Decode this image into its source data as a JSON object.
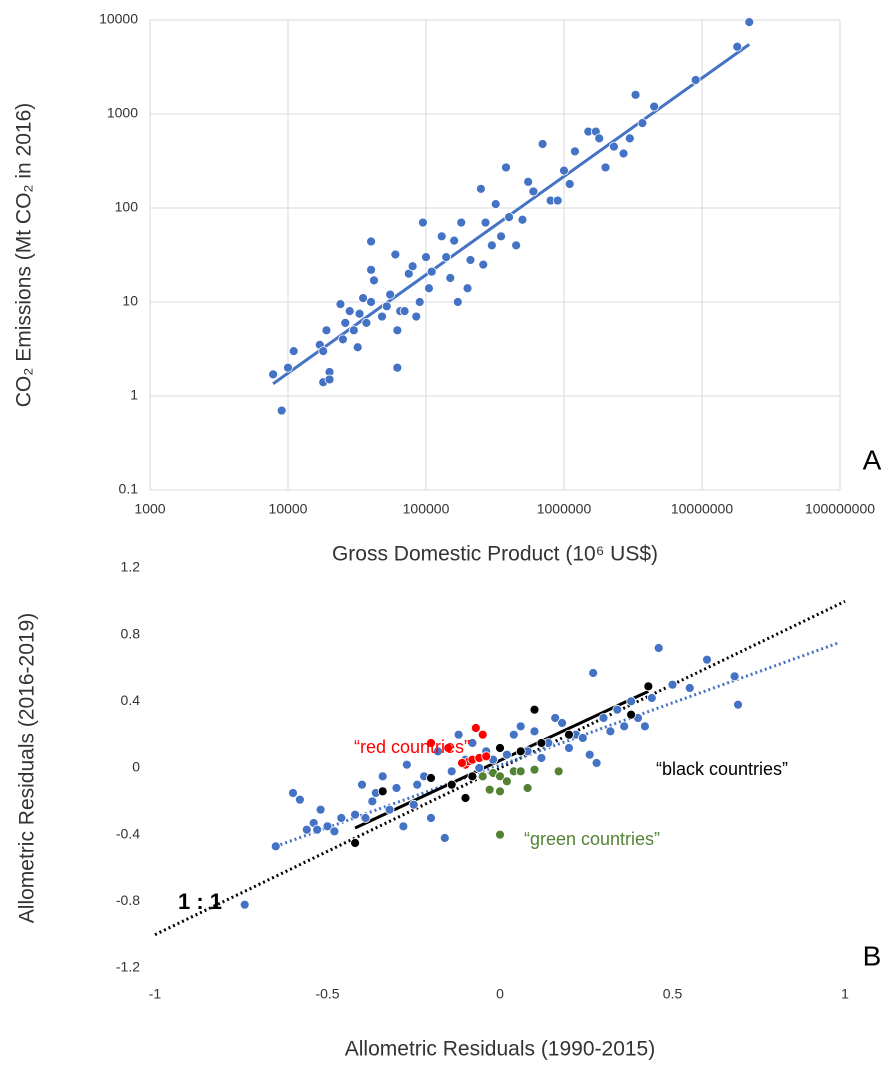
{
  "chart_data": [
    {
      "type": "scatter",
      "x_label": "Gross Domestic Product (10⁶ US$)",
      "y_label": "CO₂ Emissions (Mt CO₂ in 2016)",
      "panel_label": "A",
      "log_x": true,
      "log_y": true,
      "grid": true,
      "xlim": [
        1000,
        100000000
      ],
      "xticks": [
        1000,
        10000,
        100000,
        1000000,
        10000000,
        100000000
      ],
      "ylim": [
        0.1,
        10000
      ],
      "yticks": [
        0.1,
        1,
        10,
        100,
        1000,
        10000
      ],
      "color": "#4472c4",
      "x": [
        7800,
        9000,
        10000,
        11000,
        17000,
        18000,
        18000,
        20000,
        20000,
        19000,
        24000,
        25000,
        26000,
        28000,
        30000,
        32000,
        33000,
        35000,
        37000,
        40000,
        40000,
        40000,
        42000,
        48000,
        52000,
        55000,
        60000,
        62000,
        62000,
        65000,
        70000,
        75000,
        80000,
        85000,
        90000,
        95000,
        100000,
        105000,
        110000,
        130000,
        140000,
        150000,
        160000,
        170000,
        180000,
        200000,
        210000,
        250000,
        260000,
        270000,
        300000,
        320000,
        350000,
        380000,
        400000,
        450000,
        500000,
        550000,
        600000,
        700000,
        800000,
        900000,
        1000000,
        1100000,
        1200000,
        1500000,
        1700000,
        1800000,
        2000000,
        2300000,
        2700000,
        3000000,
        3300000,
        3700000,
        4500000,
        9000000,
        18000000,
        22000000
      ],
      "values": [
        1.7,
        0.7,
        2,
        3,
        3.5,
        1.4,
        3,
        1.8,
        1.5,
        5,
        9.5,
        4,
        6,
        8,
        5,
        3.3,
        7.5,
        11,
        6,
        10,
        44,
        22,
        17,
        7,
        9,
        12,
        32,
        2,
        5,
        8,
        8,
        20,
        24,
        7,
        10,
        70,
        30,
        14,
        21,
        50,
        30,
        18,
        45,
        10,
        70,
        14,
        28,
        160,
        25,
        70,
        40,
        110,
        50,
        270,
        80,
        40,
        75,
        190,
        150,
        480,
        120,
        120,
        250,
        180,
        400,
        650,
        650,
        550,
        270,
        450,
        380,
        550,
        1600,
        800,
        1200,
        2300,
        5200,
        9500
      ],
      "lines": [
        {
          "color": "#4472c4",
          "style": "solid",
          "x": [
            7800,
            22000000
          ],
          "values": [
            1.35,
            5500
          ]
        }
      ]
    },
    {
      "type": "scatter",
      "x_label": "Allometric Residuals (1990-2015)",
      "y_label": "Allometric Residuals (2016-2019)",
      "panel_label": "B",
      "log_x": false,
      "log_y": false,
      "grid": false,
      "xlim": [
        -1,
        1
      ],
      "xticks": [
        -1,
        -0.5,
        0,
        0.5,
        1
      ],
      "ylim": [
        -1.2,
        1.2
      ],
      "yticks": [
        -1.2,
        -0.8,
        -0.4,
        0,
        0.4,
        0.8,
        1.2
      ],
      "series": [
        {
          "color": "#4472c4",
          "x": [
            -0.74,
            -0.65,
            -0.6,
            -0.58,
            -0.56,
            -0.54,
            -0.53,
            -0.52,
            -0.5,
            -0.48,
            -0.46,
            -0.42,
            -0.4,
            -0.39,
            -0.37,
            -0.36,
            -0.34,
            -0.32,
            -0.3,
            -0.28,
            -0.27,
            -0.25,
            -0.24,
            -0.22,
            -0.2,
            -0.18,
            -0.16,
            -0.14,
            -0.12,
            -0.1,
            -0.08,
            -0.06,
            -0.04,
            -0.02,
            0,
            0.02,
            0.04,
            0.06,
            0.08,
            0.1,
            0.12,
            0.14,
            0.16,
            0.18,
            0.2,
            0.22,
            0.24,
            0.26,
            0.27,
            0.28,
            0.3,
            0.32,
            0.34,
            0.36,
            0.38,
            0.4,
            0.42,
            0.44,
            0.46,
            0.5,
            0.55,
            0.6,
            0.68,
            0.69
          ],
          "values": [
            -0.82,
            -0.47,
            -0.15,
            -0.19,
            -0.37,
            -0.33,
            -0.37,
            -0.25,
            -0.35,
            -0.38,
            -0.3,
            -0.28,
            -0.1,
            -0.3,
            -0.2,
            -0.15,
            -0.05,
            -0.25,
            -0.12,
            -0.35,
            0.02,
            -0.22,
            -0.1,
            -0.05,
            -0.3,
            0.1,
            -0.42,
            -0.02,
            0.2,
            0.05,
            0.15,
            0,
            0.1,
            0.05,
            0.12,
            0.08,
            0.2,
            0.25,
            0.1,
            0.22,
            0.06,
            0.15,
            0.3,
            0.27,
            0.12,
            0.2,
            0.18,
            0.08,
            0.57,
            0.03,
            0.3,
            0.22,
            0.35,
            0.25,
            0.4,
            0.3,
            0.25,
            0.42,
            0.72,
            0.5,
            0.48,
            0.65,
            0.55,
            0.38
          ]
        },
        {
          "name": "“red countries”",
          "color": "#ff0000",
          "x": [
            -0.2,
            -0.15,
            -0.07,
            -0.05,
            -0.1,
            -0.09,
            -0.08,
            -0.06,
            -0.04,
            -0.11
          ],
          "values": [
            0.15,
            0.12,
            0.24,
            0.2,
            0.02,
            0.04,
            0.05,
            0.06,
            0.07,
            0.03
          ]
        },
        {
          "name": "“black countries”",
          "color": "#000000",
          "x": [
            -0.42,
            -0.34,
            -0.2,
            -0.14,
            -0.1,
            -0.08,
            0,
            0.1,
            0.12,
            0.2,
            0.38,
            0.43,
            0.06,
            -0.05
          ],
          "values": [
            -0.45,
            -0.14,
            -0.06,
            -0.1,
            -0.18,
            -0.05,
            0.12,
            0.35,
            0.15,
            0.2,
            0.32,
            0.49,
            0.1,
            -0.05
          ]
        },
        {
          "name": "“green countries”",
          "color": "#548235",
          "x": [
            0,
            -0.03,
            -0.05,
            -0.02,
            0,
            0.02,
            0.04,
            0.06,
            0.1,
            0.17,
            0.08,
            0
          ],
          "values": [
            -0.4,
            -0.13,
            -0.05,
            -0.03,
            -0.05,
            -0.08,
            -0.02,
            -0.02,
            -0.01,
            -0.02,
            -0.12,
            -0.14
          ]
        }
      ],
      "lines": [
        {
          "label": "1 : 1",
          "color": "#000000",
          "style": "dotted",
          "x": [
            -1,
            1
          ],
          "values": [
            -1,
            1
          ]
        },
        {
          "color": "#4472c4",
          "style": "dotted",
          "x": [
            -0.65,
            0.98
          ],
          "values": [
            -0.47,
            0.75
          ]
        },
        {
          "color": "#000000",
          "style": "solid",
          "x": [
            -0.42,
            0.43
          ],
          "values": [
            -0.36,
            0.46
          ]
        }
      ]
    }
  ]
}
